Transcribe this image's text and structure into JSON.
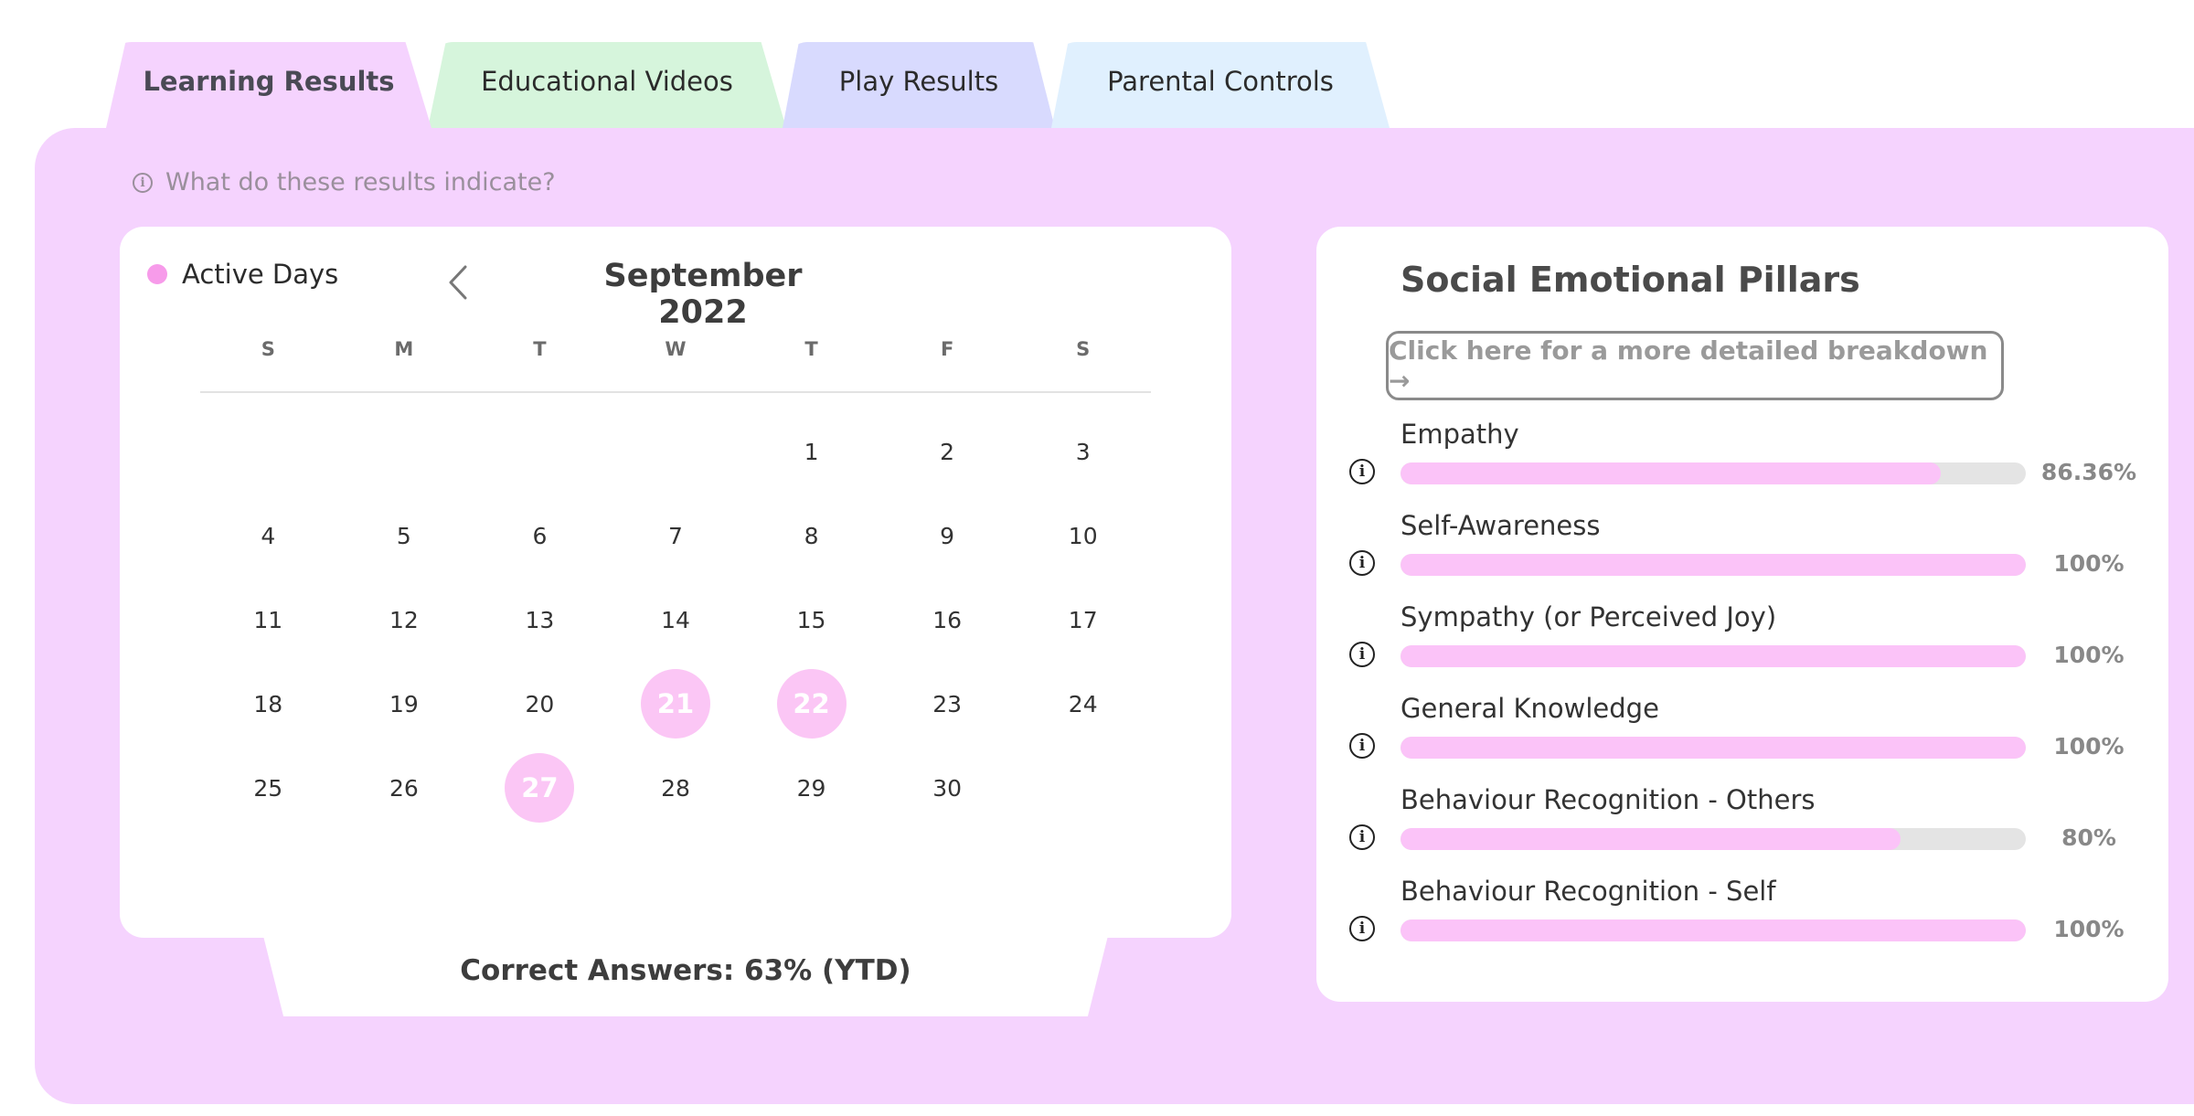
{
  "tabs": [
    {
      "label": "Learning Results"
    },
    {
      "label": "Educational Videos"
    },
    {
      "label": "Play Results"
    },
    {
      "label": "Parental Controls"
    }
  ],
  "help": {
    "text": "What do these results indicate?"
  },
  "calendar": {
    "legend": "Active Days",
    "month": "September 2022",
    "weekdays": [
      "S",
      "M",
      "T",
      "W",
      "T",
      "F",
      "S"
    ],
    "weeks": [
      [
        "",
        "",
        "",
        "",
        "1",
        "2",
        "3"
      ],
      [
        "4",
        "5",
        "6",
        "7",
        "8",
        "9",
        "10"
      ],
      [
        "11",
        "12",
        "13",
        "14",
        "15",
        "16",
        "17"
      ],
      [
        "18",
        "19",
        "20",
        "21",
        "22",
        "23",
        "24"
      ],
      [
        "25",
        "26",
        "27",
        "28",
        "29",
        "30",
        ""
      ]
    ],
    "active_days": [
      "21",
      "22",
      "27"
    ],
    "footer": "Correct Answers: 63% (YTD)"
  },
  "pillars": {
    "title": "Social Emotional Pillars",
    "button": "Click here for a more detailed breakdown →",
    "items": [
      {
        "label": "Empathy",
        "value": 86.36,
        "pct": "86.36%"
      },
      {
        "label": "Self-Awareness",
        "value": 100,
        "pct": "100%"
      },
      {
        "label": "Sympathy (or Perceived Joy)",
        "value": 100,
        "pct": "100%"
      },
      {
        "label": "General Knowledge",
        "value": 100,
        "pct": "100%"
      },
      {
        "label": "Behaviour Recognition - Others",
        "value": 80,
        "pct": "80%"
      },
      {
        "label": "Behaviour Recognition - Self",
        "value": 100,
        "pct": "100%"
      }
    ]
  },
  "colors": {
    "panel": "#f5d3fe",
    "active_day": "#fbc6f5",
    "bar_fill": "#fbc3f8"
  }
}
